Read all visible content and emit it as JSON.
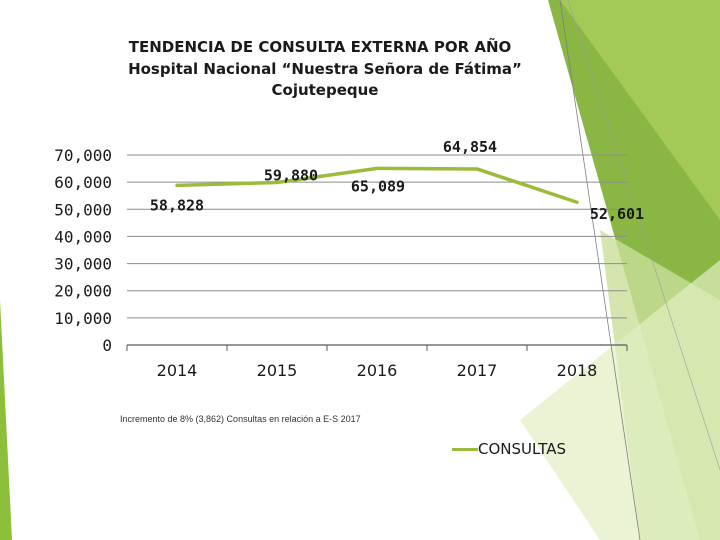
{
  "title": {
    "line1": "TENDENCIA DE CONSULTA EXTERNA POR AÑO",
    "line2": "Hospital Nacional “Nuestra Señora de Fátima”",
    "line3": "Cojutepeque"
  },
  "note": "Incremento de 8% (3,862) Consultas en relación a E-S 2017",
  "colors": {
    "line": "#9bbb3b",
    "grid": "#7f7f7f",
    "decor_dark": "#7dae2f",
    "decor_light": "#c9e09a"
  },
  "chart_data": {
    "type": "line",
    "categories": [
      "2014",
      "2015",
      "2016",
      "2017",
      "2018"
    ],
    "series": [
      {
        "name": "CONSULTAS",
        "values": [
          58828,
          59880,
          65089,
          64854,
          52601
        ]
      }
    ],
    "data_labels": [
      "58,828",
      "59,880",
      "65,089",
      "64,854",
      "52,601"
    ],
    "y_ticks": [
      "0",
      "10,000",
      "20,000",
      "30,000",
      "40,000",
      "50,000",
      "60,000",
      "70,000"
    ],
    "ylim": [
      0,
      70000
    ],
    "grid": true,
    "legend": "bottom-right"
  }
}
